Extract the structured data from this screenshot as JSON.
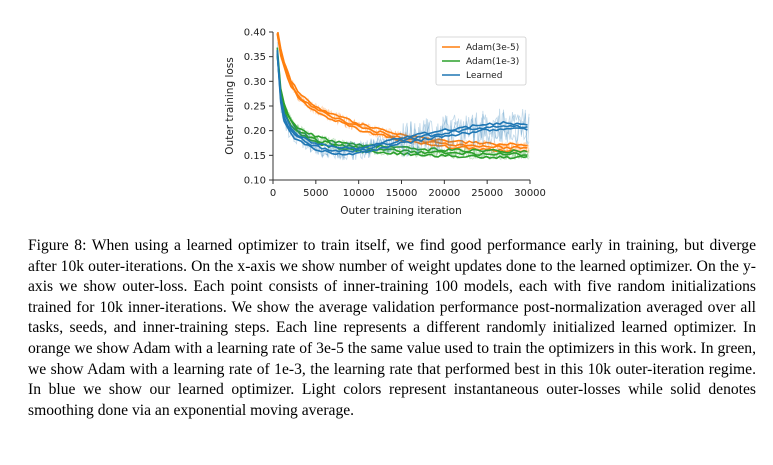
{
  "figure": {
    "chart_data": {
      "type": "line",
      "xlabel": "Outer training iteration",
      "ylabel": "Outer training loss",
      "xlim": [
        0,
        30000
      ],
      "ylim": [
        0.1,
        0.4
      ],
      "x_ticks": [
        "0",
        "5000",
        "10000",
        "15000",
        "20000",
        "25000",
        "30000"
      ],
      "y_ticks": [
        "0.10",
        "0.15",
        "0.20",
        "0.25",
        "0.30",
        "0.35",
        "0.40"
      ],
      "legend_position": "top-right",
      "x": [
        500,
        1000,
        2000,
        3000,
        4000,
        5000,
        6000,
        7000,
        8000,
        9000,
        10000,
        11000,
        12000,
        13000,
        14000,
        15000,
        16000,
        17000,
        18000,
        19000,
        20000,
        21000,
        22000,
        23000,
        24000,
        25000,
        26000,
        27000,
        28000,
        29000,
        30000
      ],
      "series": [
        {
          "name": "Adam(3e-5)",
          "color": "#ff7f0e",
          "values": [
            0.4,
            0.35,
            0.3,
            0.27,
            0.255,
            0.245,
            0.235,
            0.228,
            0.222,
            0.215,
            0.208,
            0.203,
            0.199,
            0.195,
            0.19,
            0.186,
            0.183,
            0.18,
            0.178,
            0.176,
            0.174,
            0.172,
            0.171,
            0.17,
            0.169,
            0.168,
            0.167,
            0.166,
            0.166,
            0.165,
            0.165
          ]
        },
        {
          "name": "Adam(1e-3)",
          "color": "#2ca02c",
          "values": [
            0.36,
            0.26,
            0.22,
            0.2,
            0.19,
            0.182,
            0.177,
            0.173,
            0.17,
            0.168,
            0.166,
            0.164,
            0.163,
            0.161,
            0.16,
            0.159,
            0.158,
            0.157,
            0.156,
            0.156,
            0.155,
            0.155,
            0.154,
            0.154,
            0.153,
            0.153,
            0.153,
            0.152,
            0.152,
            0.152,
            0.152
          ]
        },
        {
          "name": "Learned",
          "color": "#1f77b4",
          "values": [
            0.36,
            0.24,
            0.2,
            0.185,
            0.175,
            0.168,
            0.164,
            0.161,
            0.159,
            0.158,
            0.16,
            0.163,
            0.168,
            0.172,
            0.175,
            0.18,
            0.183,
            0.186,
            0.19,
            0.192,
            0.195,
            0.197,
            0.2,
            0.202,
            0.205,
            0.207,
            0.208,
            0.21,
            0.209,
            0.208,
            0.207
          ]
        }
      ]
    }
  },
  "caption": "Figure 8: When using a learned optimizer to train itself, we find good performance early in training, but diverge after 10k outer-iterations. On the x-axis we show number of weight updates done to the learned optimizer. On the y-axis we show outer-loss. Each point consists of inner-training 100 models, each with five random initializations trained for 10k inner-iterations. We show the average validation performance post-normalization averaged over all tasks, seeds, and inner-training steps. Each line represents a different randomly initialized learned optimizer. In orange we show Adam with a learning rate of 3e-5 the same value used to train the optimizers in this work. In green, we show Adam with a learning rate of 1e-3, the learning rate that performed best in this 10k outer-iteration regime. In blue we show our learned optimizer. Light colors represent instantaneous outer-losses while solid denotes smoothing done via an exponential moving average."
}
